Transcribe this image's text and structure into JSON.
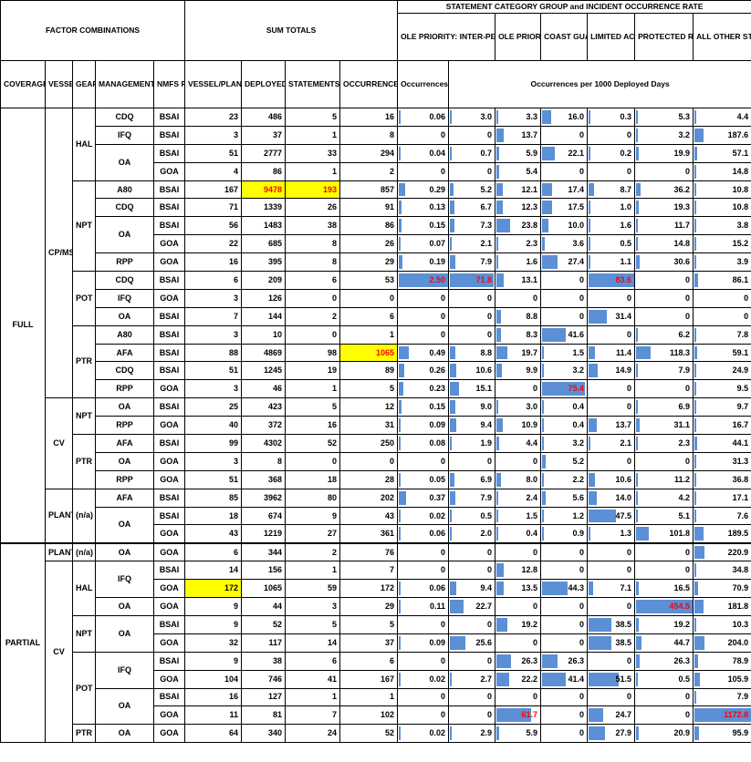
{
  "headers": {
    "factor_combinations": "FACTOR COMBINATIONS",
    "sum_totals": "SUM TOTALS",
    "stmt_group": "STATEMENT CATEGORY GROUP and INCIDENT OCCURRENCE RATE",
    "ole_inter": "OLE PRIORITY: INTER-PERSONAL",
    "ole_safety": "OLE PRIORITY: SAFETY AND DUTIES",
    "coast_guard": "COAST GUARD",
    "limited_access": "LIMITED ACCESS PROGRAMS",
    "protected": "PROTECTED RESOURCE & PROHIBITED SPECIES",
    "all_other": "ALL OTHER STATEMENT TYPES",
    "coverage_type": "COVERAGE TYPE",
    "vessel_type": "VESSEL TYPE",
    "gear_type": "GEAR TYPE",
    "mgmt_program": "MANAGEMENT PROGRAM",
    "nmfs_region": "NMFS REGION",
    "assignments": "VESSEL/PLANT ASSIGNMENTS",
    "deployed_days": "DEPLOYED DAYS",
    "statements": "STATEMENTS (all categories)",
    "occurrences": "OCCURRENCES (all categories)",
    "occ_per_vessel": "Occurrences per Vessel/Plant assignment",
    "occ_per_1000": "Occurrences per 1000 Deployed Days"
  },
  "rows": [
    {
      "cov": "FULL",
      "vt": "CP/MS",
      "gear": "HAL",
      "prog": "CDQ",
      "reg": "BSAI",
      "asg": "23",
      "days": "486",
      "stm": "5",
      "occ": "16",
      "opv": "0.06",
      "r": [
        "3.0",
        "3.3",
        "16.0",
        "0.3",
        "5.3",
        "4.4"
      ]
    },
    {
      "cov": "",
      "vt": "",
      "gear": "",
      "prog": "IFQ",
      "reg": "BSAI",
      "asg": "3",
      "days": "37",
      "stm": "1",
      "occ": "8",
      "opv": "0",
      "r": [
        "0",
        "13.7",
        "0",
        "0",
        "3.2",
        "187.6"
      ]
    },
    {
      "cov": "",
      "vt": "",
      "gear": "",
      "prog": "OA",
      "reg": "BSAI",
      "asg": "51",
      "days": "2777",
      "stm": "33",
      "occ": "294",
      "opv": "0.04",
      "r": [
        "0.7",
        "5.9",
        "22.1",
        "0.2",
        "19.9",
        "57.1"
      ]
    },
    {
      "cov": "",
      "vt": "",
      "gear": "",
      "prog": "",
      "reg": "GOA",
      "asg": "4",
      "days": "86",
      "stm": "1",
      "occ": "2",
      "opv": "0",
      "r": [
        "0",
        "5.4",
        "0",
        "0",
        "0",
        "14.8"
      ]
    },
    {
      "cov": "",
      "vt": "",
      "gear": "NPT",
      "prog": "A80",
      "reg": "BSAI",
      "asg": "167",
      "days": "9478",
      "stm": "193",
      "occ": "857",
      "opv": "0.29",
      "r": [
        "5.2",
        "12.1",
        "17.4",
        "8.7",
        "36.2",
        "10.8"
      ]
    },
    {
      "cov": "",
      "vt": "",
      "gear": "",
      "prog": "CDQ",
      "reg": "BSAI",
      "asg": "71",
      "days": "1339",
      "stm": "26",
      "occ": "91",
      "opv": "0.13",
      "r": [
        "6.7",
        "12.3",
        "17.5",
        "1.0",
        "19.3",
        "10.8"
      ]
    },
    {
      "cov": "",
      "vt": "",
      "gear": "",
      "prog": "OA",
      "reg": "BSAI",
      "asg": "56",
      "days": "1483",
      "stm": "38",
      "occ": "86",
      "opv": "0.15",
      "r": [
        "7.3",
        "23.8",
        "10.0",
        "1.6",
        "11.7",
        "3.8"
      ]
    },
    {
      "cov": "",
      "vt": "",
      "gear": "",
      "prog": "",
      "reg": "GOA",
      "asg": "22",
      "days": "685",
      "stm": "8",
      "occ": "26",
      "opv": "0.07",
      "r": [
        "2.1",
        "2.3",
        "3.6",
        "0.5",
        "14.8",
        "15.2"
      ]
    },
    {
      "cov": "",
      "vt": "",
      "gear": "",
      "prog": "RPP",
      "reg": "GOA",
      "asg": "16",
      "days": "395",
      "stm": "8",
      "occ": "29",
      "opv": "0.19",
      "r": [
        "7.9",
        "1.6",
        "27.4",
        "1.1",
        "30.6",
        "3.9"
      ]
    },
    {
      "cov": "",
      "vt": "",
      "gear": "POT",
      "prog": "CDQ",
      "reg": "BSAI",
      "asg": "6",
      "days": "209",
      "stm": "6",
      "occ": "53",
      "opv": "2.50",
      "r": [
        "71.8",
        "13.1",
        "0",
        "83.6",
        "0",
        "86.1"
      ]
    },
    {
      "cov": "",
      "vt": "",
      "gear": "",
      "prog": "IFQ",
      "reg": "GOA",
      "asg": "3",
      "days": "126",
      "stm": "0",
      "occ": "0",
      "opv": "0",
      "r": [
        "0",
        "0",
        "0",
        "0",
        "0",
        "0"
      ]
    },
    {
      "cov": "",
      "vt": "",
      "gear": "",
      "prog": "OA",
      "reg": "BSAI",
      "asg": "7",
      "days": "144",
      "stm": "2",
      "occ": "6",
      "opv": "0",
      "r": [
        "0",
        "8.8",
        "0",
        "31.4",
        "0",
        "0"
      ]
    },
    {
      "cov": "",
      "vt": "",
      "gear": "PTR",
      "prog": "A80",
      "reg": "BSAI",
      "asg": "3",
      "days": "10",
      "stm": "0",
      "occ": "1",
      "opv": "0",
      "r": [
        "0",
        "8.3",
        "41.6",
        "0",
        "6.2",
        "7.8"
      ]
    },
    {
      "cov": "",
      "vt": "",
      "gear": "",
      "prog": "AFA",
      "reg": "BSAI",
      "asg": "88",
      "days": "4869",
      "stm": "98",
      "occ": "1065",
      "opv": "0.49",
      "r": [
        "8.8",
        "19.7",
        "1.5",
        "11.4",
        "118.3",
        "59.1"
      ]
    },
    {
      "cov": "",
      "vt": "",
      "gear": "",
      "prog": "CDQ",
      "reg": "BSAI",
      "asg": "51",
      "days": "1245",
      "stm": "19",
      "occ": "89",
      "opv": "0.26",
      "r": [
        "10.6",
        "9.9",
        "3.2",
        "14.9",
        "7.9",
        "24.9"
      ]
    },
    {
      "cov": "",
      "vt": "",
      "gear": "",
      "prog": "RPP",
      "reg": "GOA",
      "asg": "3",
      "days": "46",
      "stm": "1",
      "occ": "5",
      "opv": "0.23",
      "r": [
        "15.1",
        "0",
        "75.4",
        "0",
        "0",
        "9.5"
      ]
    },
    {
      "cov": "",
      "vt": "CV",
      "gear": "NPT",
      "prog": "OA",
      "reg": "BSAI",
      "asg": "25",
      "days": "423",
      "stm": "5",
      "occ": "12",
      "opv": "0.15",
      "r": [
        "9.0",
        "3.0",
        "0.4",
        "0",
        "6.9",
        "9.7"
      ]
    },
    {
      "cov": "",
      "vt": "",
      "gear": "",
      "prog": "RPP",
      "reg": "GOA",
      "asg": "40",
      "days": "372",
      "stm": "16",
      "occ": "31",
      "opv": "0.09",
      "r": [
        "9.4",
        "10.9",
        "0.4",
        "13.7",
        "31.1",
        "16.7"
      ]
    },
    {
      "cov": "",
      "vt": "",
      "gear": "PTR",
      "prog": "AFA",
      "reg": "BSAI",
      "asg": "99",
      "days": "4302",
      "stm": "52",
      "occ": "250",
      "opv": "0.08",
      "r": [
        "1.9",
        "4.4",
        "3.2",
        "2.1",
        "2.3",
        "44.1"
      ]
    },
    {
      "cov": "",
      "vt": "",
      "gear": "",
      "prog": "OA",
      "reg": "GOA",
      "asg": "3",
      "days": "8",
      "stm": "0",
      "occ": "0",
      "opv": "0",
      "r": [
        "0",
        "0",
        "5.2",
        "0",
        "0",
        "31.3"
      ]
    },
    {
      "cov": "",
      "vt": "",
      "gear": "",
      "prog": "RPP",
      "reg": "GOA",
      "asg": "51",
      "days": "368",
      "stm": "18",
      "occ": "28",
      "opv": "0.05",
      "r": [
        "6.9",
        "8.0",
        "2.2",
        "10.6",
        "11.2",
        "36.8"
      ]
    },
    {
      "cov": "",
      "vt": "PLANT",
      "gear": "(n/a)",
      "prog": "AFA",
      "reg": "BSAI",
      "asg": "85",
      "days": "3962",
      "stm": "80",
      "occ": "202",
      "opv": "0.37",
      "r": [
        "7.9",
        "2.4",
        "5.6",
        "14.0",
        "4.2",
        "17.1"
      ]
    },
    {
      "cov": "",
      "vt": "",
      "gear": "",
      "prog": "OA",
      "reg": "BSAI",
      "asg": "18",
      "days": "674",
      "stm": "9",
      "occ": "43",
      "opv": "0.02",
      "r": [
        "0.5",
        "1.5",
        "1.2",
        "47.5",
        "5.1",
        "7.6"
      ]
    },
    {
      "cov": "",
      "vt": "",
      "gear": "",
      "prog": "",
      "reg": "GOA",
      "asg": "43",
      "days": "1219",
      "stm": "27",
      "occ": "361",
      "opv": "0.06",
      "r": [
        "2.0",
        "0.4",
        "0.9",
        "1.3",
        "101.8",
        "189.5"
      ]
    },
    {
      "cov": "PARTIAL",
      "vt": "PLANT",
      "gear": "(n/a)",
      "prog": "OA",
      "reg": "GOA",
      "asg": "6",
      "days": "344",
      "stm": "2",
      "occ": "76",
      "opv": "0",
      "r": [
        "0",
        "0",
        "0",
        "0",
        "0",
        "220.9"
      ]
    },
    {
      "cov": "",
      "vt": "CV",
      "gear": "HAL",
      "prog": "IFQ",
      "reg": "BSAI",
      "asg": "14",
      "days": "156",
      "stm": "1",
      "occ": "7",
      "opv": "0",
      "r": [
        "0",
        "12.8",
        "0",
        "0",
        "0",
        "34.8"
      ]
    },
    {
      "cov": "",
      "vt": "",
      "gear": "",
      "prog": "",
      "reg": "GOA",
      "asg": "172",
      "days": "1065",
      "stm": "59",
      "occ": "172",
      "opv": "0.06",
      "r": [
        "9.4",
        "13.5",
        "44.3",
        "7.1",
        "16.5",
        "70.9"
      ]
    },
    {
      "cov": "",
      "vt": "",
      "gear": "",
      "prog": "OA",
      "reg": "GOA",
      "asg": "9",
      "days": "44",
      "stm": "3",
      "occ": "29",
      "opv": "0.11",
      "r": [
        "22.7",
        "0",
        "0",
        "0",
        "454.5",
        "181.8"
      ]
    },
    {
      "cov": "",
      "vt": "",
      "gear": "NPT",
      "prog": "OA",
      "reg": "BSAI",
      "asg": "9",
      "days": "52",
      "stm": "5",
      "occ": "5",
      "opv": "0",
      "r": [
        "0",
        "19.2",
        "0",
        "38.5",
        "19.2",
        "10.3"
      ]
    },
    {
      "cov": "",
      "vt": "",
      "gear": "",
      "prog": "",
      "reg": "GOA",
      "asg": "32",
      "days": "117",
      "stm": "14",
      "occ": "37",
      "opv": "0.09",
      "r": [
        "25.6",
        "0",
        "0",
        "38.5",
        "44.7",
        "204.0"
      ]
    },
    {
      "cov": "",
      "vt": "",
      "gear": "POT",
      "prog": "IFQ",
      "reg": "BSAI",
      "asg": "9",
      "days": "38",
      "stm": "6",
      "occ": "6",
      "opv": "0",
      "r": [
        "0",
        "26.3",
        "26.3",
        "0",
        "26.3",
        "78.9"
      ]
    },
    {
      "cov": "",
      "vt": "",
      "gear": "",
      "prog": "",
      "reg": "GOA",
      "asg": "104",
      "days": "746",
      "stm": "41",
      "occ": "167",
      "opv": "0.02",
      "r": [
        "2.7",
        "22.2",
        "41.4",
        "51.5",
        "0.5",
        "105.9"
      ]
    },
    {
      "cov": "",
      "vt": "",
      "gear": "",
      "prog": "OA",
      "reg": "BSAI",
      "asg": "16",
      "days": "127",
      "stm": "1",
      "occ": "1",
      "opv": "0",
      "r": [
        "0",
        "0",
        "0",
        "0",
        "0",
        "7.9"
      ]
    },
    {
      "cov": "",
      "vt": "",
      "gear": "",
      "prog": "",
      "reg": "GOA",
      "asg": "11",
      "days": "81",
      "stm": "7",
      "occ": "102",
      "opv": "0",
      "r": [
        "0",
        "61.7",
        "0",
        "24.7",
        "0",
        "1172.8"
      ]
    },
    {
      "cov": "",
      "vt": "",
      "gear": "PTR",
      "prog": "OA",
      "reg": "GOA",
      "asg": "64",
      "days": "340",
      "stm": "24",
      "occ": "52",
      "opv": "0.02",
      "r": [
        "2.9",
        "5.9",
        "0",
        "27.9",
        "20.9",
        "95.9"
      ]
    }
  ],
  "highlights": {
    "yellow_fill": "#ffff00",
    "red_text": "#ff0000",
    "bar_color": "#5b8fd6",
    "yellow_cells": [
      {
        "row": 4,
        "col": "days"
      },
      {
        "row": 4,
        "col": "stm"
      },
      {
        "row": 13,
        "col": "occ"
      },
      {
        "row": 26,
        "col": "asg"
      }
    ],
    "red_cells": [
      {
        "row": 4,
        "col": "days"
      },
      {
        "row": 4,
        "col": "stm"
      },
      {
        "row": 13,
        "col": "occ"
      },
      {
        "row": 9,
        "col": "opv"
      },
      {
        "row": 9,
        "col": "r0"
      },
      {
        "row": 9,
        "col": "r3"
      },
      {
        "row": 15,
        "col": "r2"
      },
      {
        "row": 27,
        "col": "r4"
      },
      {
        "row": 33,
        "col": "r1"
      },
      {
        "row": 33,
        "col": "r5"
      }
    ]
  }
}
